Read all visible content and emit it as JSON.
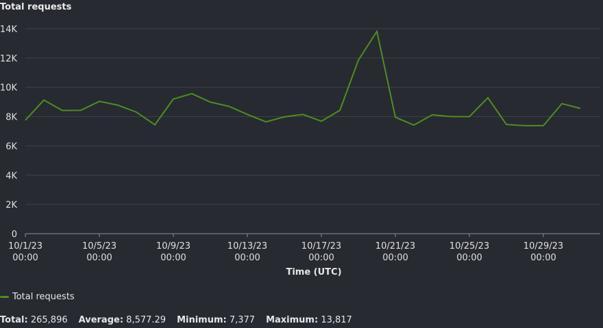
{
  "panel": {
    "title": "Total requests"
  },
  "legend": {
    "items": [
      {
        "label": "Total requests",
        "color": "#4e8d22"
      }
    ]
  },
  "stats": {
    "total_label": "Total:",
    "total_value": "265,896",
    "average_label": "Average:",
    "average_value": "8,577.29",
    "minimum_label": "Minimum:",
    "minimum_value": "7,377",
    "maximum_label": "Maximum:",
    "maximum_value": "13,817"
  },
  "colors": {
    "background": "#272a31",
    "grid": "#3e424a",
    "axis": "#8a8f97",
    "series": "#4e8d22"
  },
  "chart_data": {
    "type": "line",
    "title": "Total requests",
    "xlabel": "Time (UTC)",
    "ylabel": "",
    "ylim": [
      0,
      14000
    ],
    "yticks": [
      0,
      2000,
      4000,
      6000,
      8000,
      10000,
      12000,
      14000
    ],
    "ytick_labels": [
      "0",
      "2K",
      "4K",
      "6K",
      "8K",
      "10K",
      "12K",
      "14K"
    ],
    "xticks": [
      {
        "date": "10/1/23",
        "time": "00:00"
      },
      {
        "date": "10/5/23",
        "time": "00:00"
      },
      {
        "date": "10/9/23",
        "time": "00:00"
      },
      {
        "date": "10/13/23",
        "time": "00:00"
      },
      {
        "date": "10/17/23",
        "time": "00:00"
      },
      {
        "date": "10/21/23",
        "time": "00:00"
      },
      {
        "date": "10/25/23",
        "time": "00:00"
      },
      {
        "date": "10/29/23",
        "time": "00:00"
      }
    ],
    "grid": true,
    "legend_position": "bottom-left",
    "x": [
      "10/1/23",
      "10/2/23",
      "10/3/23",
      "10/4/23",
      "10/5/23",
      "10/6/23",
      "10/7/23",
      "10/8/23",
      "10/9/23",
      "10/10/23",
      "10/11/23",
      "10/12/23",
      "10/13/23",
      "10/14/23",
      "10/15/23",
      "10/16/23",
      "10/17/23",
      "10/18/23",
      "10/19/23",
      "10/20/23",
      "10/21/23",
      "10/22/23",
      "10/23/23",
      "10/24/23",
      "10/25/23",
      "10/26/23",
      "10/27/23",
      "10/28/23",
      "10/29/23",
      "10/30/23",
      "10/31/23"
    ],
    "series": [
      {
        "name": "Total requests",
        "color": "#4e8d22",
        "values": [
          7750,
          9130,
          8420,
          8430,
          9040,
          8780,
          8300,
          7440,
          9200,
          9560,
          8990,
          8700,
          8150,
          7640,
          7980,
          8150,
          7680,
          8430,
          11850,
          13817,
          7950,
          7420,
          8120,
          8000,
          8000,
          9280,
          7460,
          7377,
          7377,
          8880,
          8560
        ]
      }
    ]
  }
}
